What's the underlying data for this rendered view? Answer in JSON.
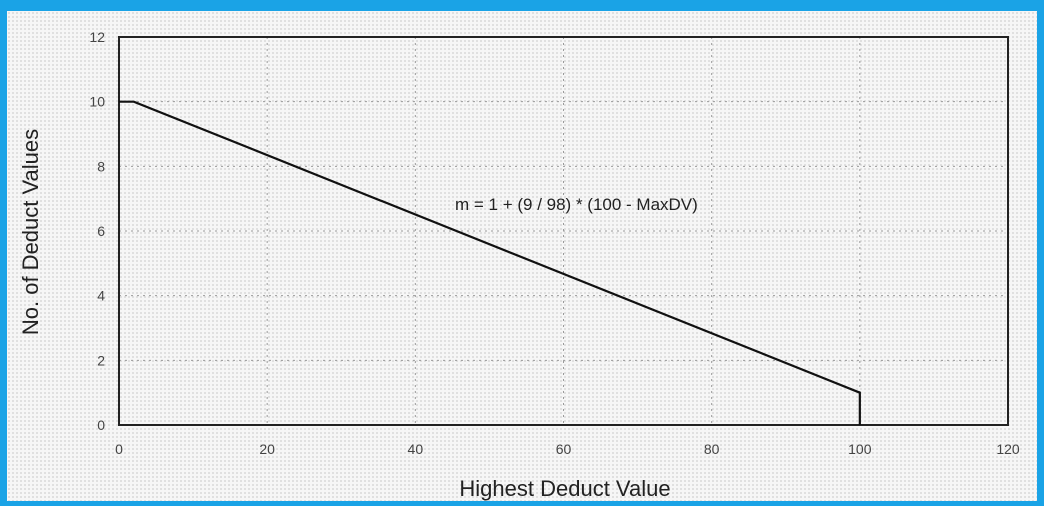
{
  "frame_color": "#1aa3e6",
  "chart_data": {
    "type": "line",
    "xlabel": "Highest Deduct Value",
    "ylabel": "No. of Deduct Values",
    "xlim": [
      0,
      120
    ],
    "ylim": [
      0,
      12
    ],
    "x_ticks": [
      "0",
      "20",
      "40",
      "60",
      "80",
      "100",
      "120"
    ],
    "y_ticks": [
      "0",
      "2",
      "4",
      "6",
      "8",
      "10",
      "12"
    ],
    "grid": true,
    "series": [
      {
        "points": [
          [
            0,
            10
          ],
          [
            2,
            10
          ],
          [
            100,
            1
          ],
          [
            100,
            0
          ]
        ],
        "color": "#111111"
      }
    ],
    "annotation": "m = 1 + (9 / 98) * (100 - MaxDV)"
  }
}
